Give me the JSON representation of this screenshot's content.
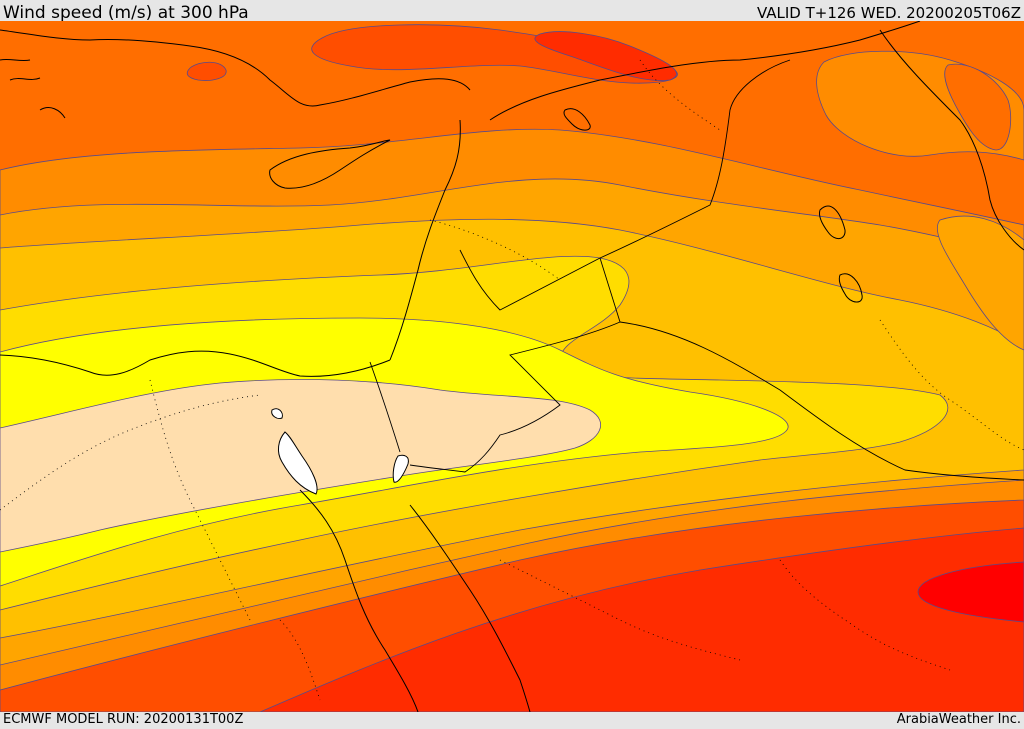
{
  "header": {
    "title": "Wind speed (m/s) at 300 hPa",
    "valid_time": "VALID T+126 WED. 20200205T06Z"
  },
  "footer": {
    "model_run": "ECMWF MODEL RUN: 20200131T00Z",
    "credit": "ArabiaWeather Inc."
  },
  "colors": {
    "band_1": "#ffdead",
    "band_2": "#ffff00",
    "band_3": "#ffdd00",
    "band_4": "#ffc000",
    "band_5": "#ffa500",
    "band_6": "#ff8c00",
    "band_7": "#ff6e00",
    "band_8": "#ff4e00",
    "band_9": "#ff2c00",
    "band_10": "#ff0000",
    "water": "#ffffff",
    "contour_line": "#5a4a8a",
    "coastline": "#000000"
  }
}
